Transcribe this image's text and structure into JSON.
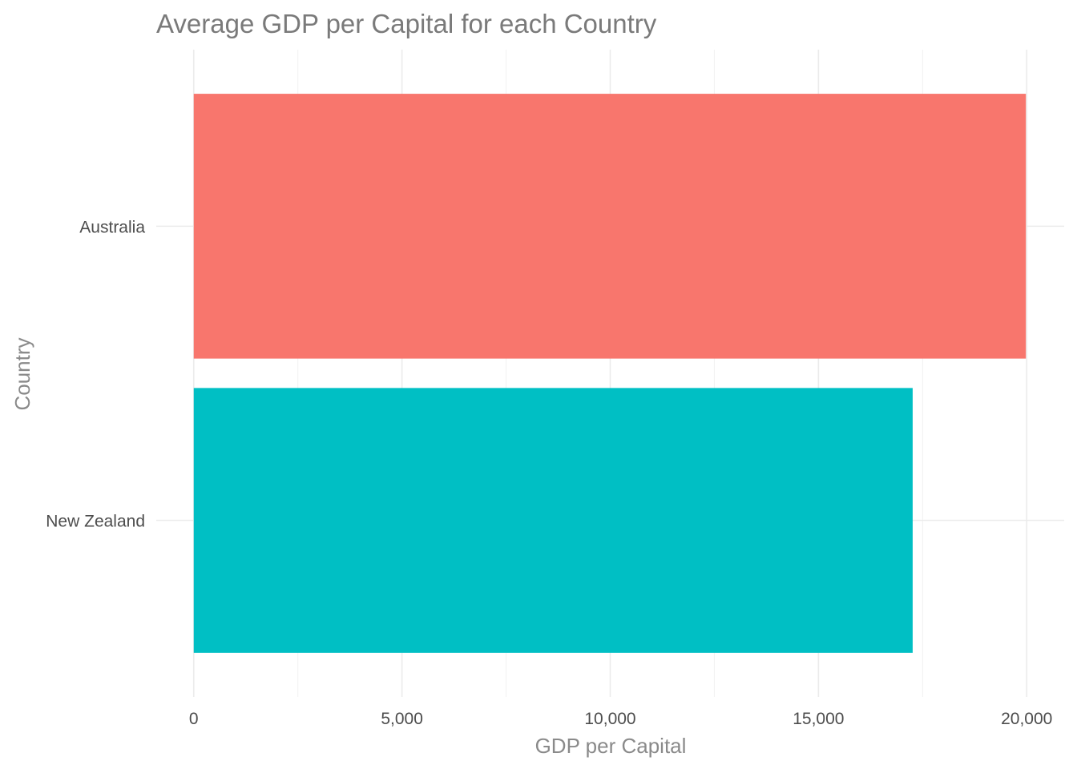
{
  "chart_data": {
    "type": "bar",
    "orientation": "horizontal",
    "title": "Average GDP per Capital for each Country",
    "xlabel": "GDP per Capital",
    "ylabel": "Country",
    "categories": [
      "Australia",
      "New Zealand"
    ],
    "values": [
      19980,
      17262
    ],
    "colors": [
      "#F8766D",
      "#00BFC4"
    ],
    "xlim": [
      -900,
      20900
    ],
    "xticks": [
      0,
      5000,
      10000,
      15000,
      20000
    ],
    "xtick_labels": [
      "0",
      "5,000",
      "10,000",
      "15,000",
      "20,000"
    ],
    "grid": true,
    "legend": "none"
  }
}
